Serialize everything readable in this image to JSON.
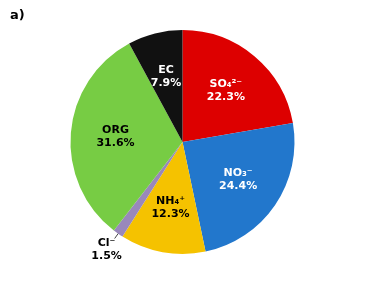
{
  "chart_data": {
    "type": "pie",
    "categories": [
      "SO₄²⁻",
      "NO₃⁻",
      "NH₄⁺",
      "Cl⁻",
      "ORG",
      "EC"
    ],
    "values": [
      22.3,
      24.4,
      12.3,
      1.5,
      31.6,
      7.9
    ],
    "value_labels": [
      "22.3%",
      "24.4%",
      "12.3%",
      "1.5%",
      "31.6%",
      "7.9%"
    ],
    "colors": [
      "#dd0000",
      "#2277cc",
      "#f5c200",
      "#9988bb",
      "#77cc44",
      "#111111"
    ],
    "data_labels": true,
    "annotations": [
      "a)"
    ]
  }
}
